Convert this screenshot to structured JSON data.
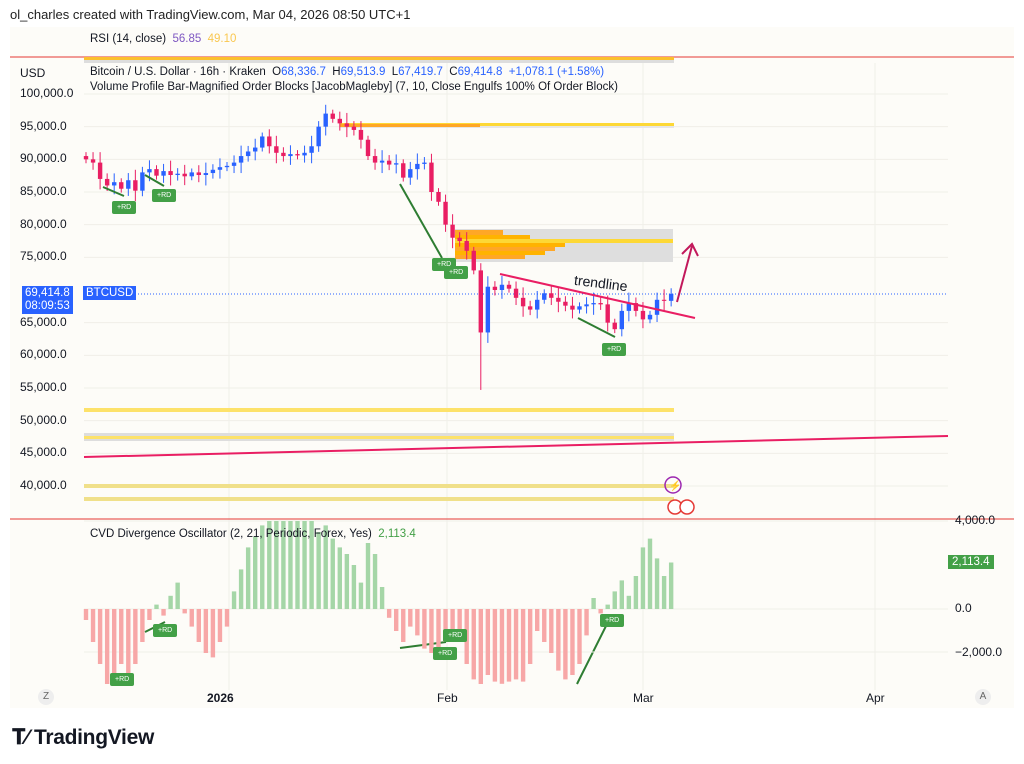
{
  "credit": "ol_charles created with TradingView.com, Mar 04, 2026 08:50 UTC+1",
  "rsi": {
    "label": "RSI (14, close)",
    "value1": "56.85",
    "value2": "49.10",
    "color1": "#7e57c2",
    "color2": "#fdd835"
  },
  "legend": {
    "symbol": "Bitcoin / U.S. Dollar · 16h · Kraken",
    "o_label": "O",
    "o": "68,336.7",
    "h_label": "H",
    "h": "69,513.9",
    "l_label": "L",
    "l": "67,419.7",
    "c_label": "C",
    "c": "69,414.8",
    "change": "+1,078.1 (+1.58%)",
    "indicator": "Volume Profile Bar-Magnified Order Blocks [JacobMagleby] (7, 10, Close Engulfs 100% Of Order Block)"
  },
  "currency": "USD",
  "price_tag": {
    "price": "69,414.8",
    "countdown": "08:09:53",
    "symbol": "BTCUSD"
  },
  "annotation": {
    "trendline": "trendline",
    "rd": "+RD"
  },
  "cvd": {
    "label": "CVD Divergence Oscillator (2, 21, Periodic, Forex, Yes)",
    "value": "2,113.4"
  },
  "time_axis": {
    "labels": [
      "2026",
      "Feb",
      "Mar",
      "Apr"
    ],
    "z": "Z",
    "a": "A"
  },
  "logo": "TradingView",
  "colors": {
    "up": "#2962ff",
    "down": "#e91e63",
    "accent": "#2962ff",
    "cvd_up": "#a5d6a7",
    "cvd_down": "#f7a7a7",
    "separator": "#e53935"
  },
  "chart_data": [
    {
      "type": "candlestick",
      "title": "Bitcoin / U.S. Dollar · 16h · Kraken",
      "start_date": "2025-12-11",
      "yticks": [
        "100,000.0",
        "95,000.0",
        "90,000.0",
        "85,000.0",
        "80,000.0",
        "75,000.0",
        "65,000.0",
        "60,000.0",
        "55,000.0",
        "50,000.0",
        "45,000.0",
        "40,000.0"
      ],
      "ylim": [
        37000,
        103000
      ],
      "close": [
        90000,
        89500,
        87000,
        86000,
        86500,
        85500,
        86800,
        85200,
        88000,
        88500,
        87500,
        88200,
        87600,
        87800,
        87400,
        88000,
        87600,
        87900,
        88400,
        88800,
        89000,
        89500,
        90500,
        91200,
        91800,
        93500,
        92000,
        91000,
        90500,
        90800,
        90600,
        91000,
        92000,
        95000,
        97000,
        96200,
        95500,
        95000,
        94500,
        93000,
        90500,
        89500,
        89800,
        89200,
        89400,
        87200,
        88500,
        89300,
        89500,
        85000,
        83500,
        80000,
        78000,
        77500,
        76000,
        73000,
        63500,
        70500,
        70000,
        70800,
        70200,
        68800,
        67500,
        67000,
        68500,
        69500,
        68800,
        68200,
        67600,
        67000,
        67500,
        67800,
        68000,
        67800,
        65000,
        64000,
        66800,
        68000,
        66800,
        65500,
        66200,
        68500,
        68336.7,
        69414.8
      ],
      "last": 69414.8
    },
    {
      "type": "bar",
      "title": "CVD Divergence Oscillator (2, 21, Periodic, Forex, Yes)",
      "start_date": "2025-12-11",
      "yticks": [
        "4,000.0",
        "0.0",
        "-2,000.0"
      ],
      "values": [
        -500,
        -1500,
        -2500,
        -3500,
        -3500,
        -2500,
        -3000,
        -2500,
        -1500,
        -500,
        200,
        -300,
        600,
        1200,
        -200,
        -800,
        -1500,
        -2000,
        -2200,
        -1500,
        -800,
        800,
        1800,
        2800,
        3300,
        3800,
        4500,
        4200,
        4500,
        4800,
        4700,
        4300,
        4000,
        3500,
        3800,
        3200,
        2800,
        2500,
        2000,
        1200,
        3000,
        2500,
        1000,
        -400,
        -1000,
        -1500,
        -800,
        -1200,
        -1800,
        -2000,
        -2200,
        -1500,
        -1000,
        -1400,
        -2500,
        -3200,
        -3500,
        -3000,
        -3300,
        -3400,
        -3300,
        -3200,
        -3300,
        -2500,
        -1000,
        -1500,
        -2000,
        -2800,
        -3200,
        -3000,
        -2500,
        -1200,
        500,
        -200,
        200,
        800,
        1300,
        600,
        1500,
        2800,
        3200,
        2300,
        1500,
        2113.4
      ]
    }
  ]
}
